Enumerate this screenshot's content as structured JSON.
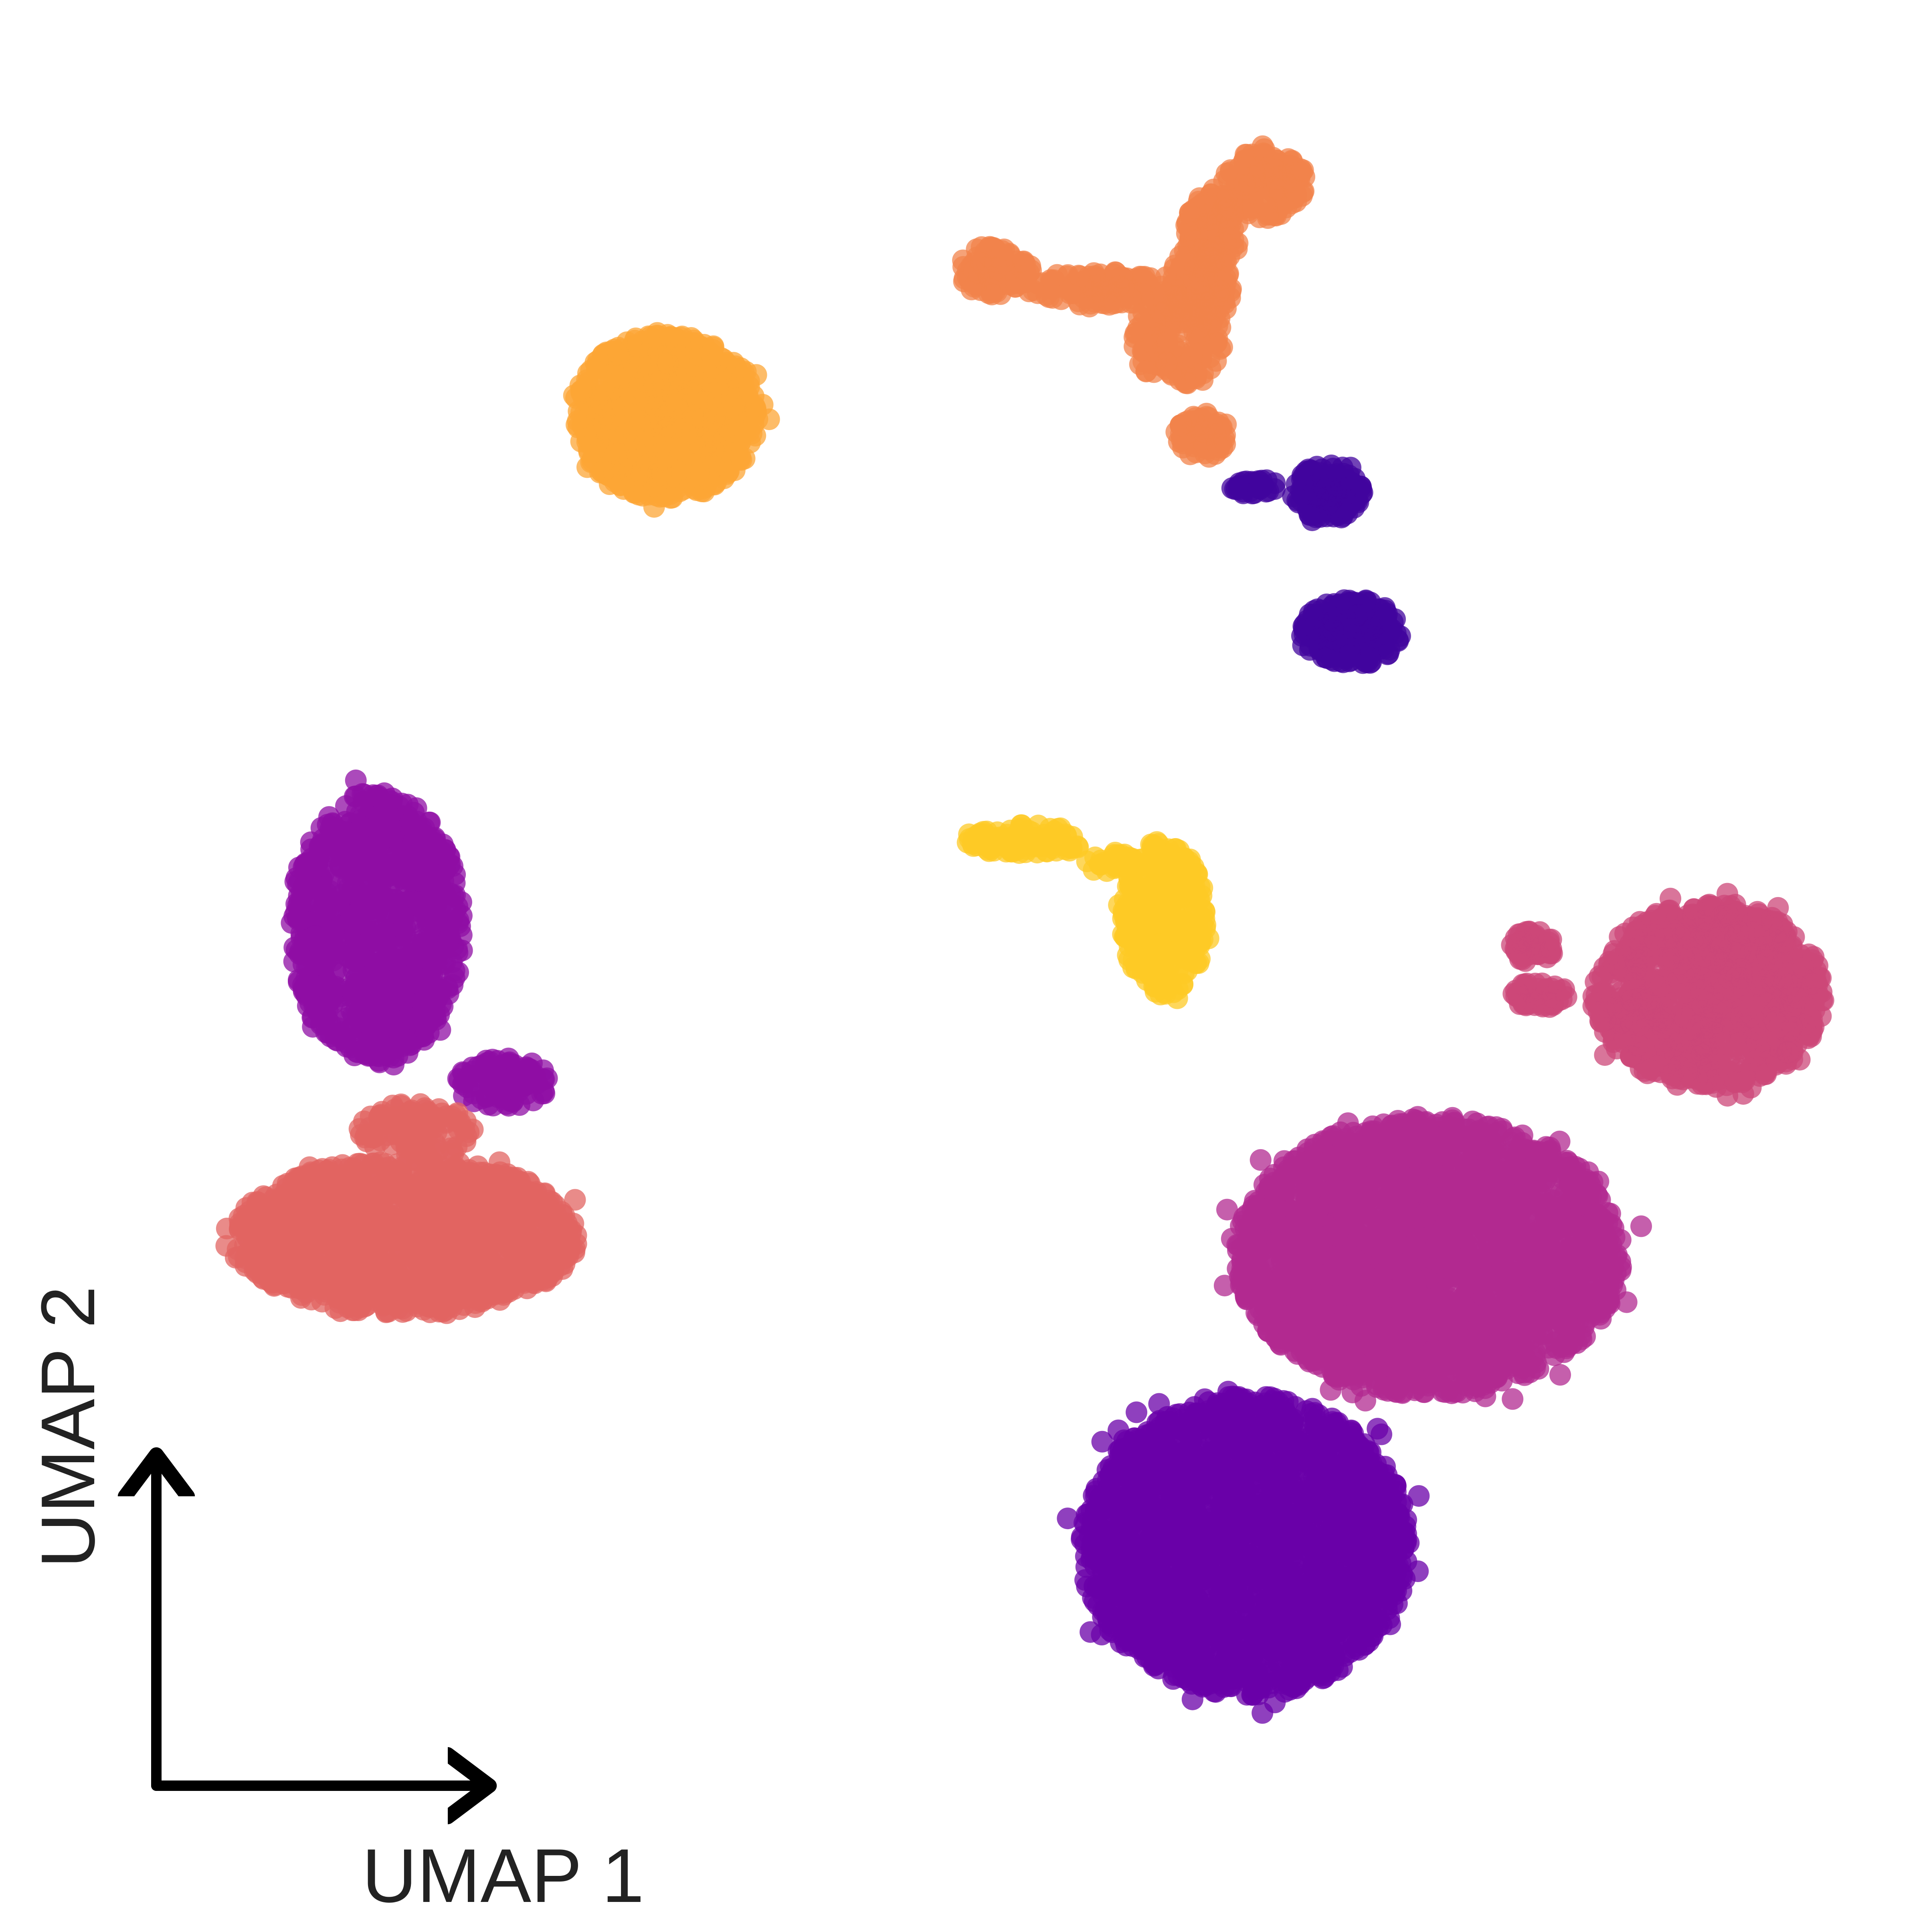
{
  "chart_data": {
    "type": "scatter",
    "title": "",
    "xlabel": "UMAP 1",
    "ylabel": "UMAP 2",
    "xlim": [
      0,
      100
    ],
    "ylim": [
      0,
      100
    ],
    "grid": false,
    "legend": "none",
    "axis_style": "corner-arrows",
    "marker": {
      "shape": "circle",
      "opacity": 0.75
    },
    "series": [
      {
        "color": "#fca636",
        "clusters": [
          {
            "cx": 34.5,
            "cy": 78.5,
            "rx": 4.8,
            "ry": 4.3,
            "n": 950
          }
        ]
      },
      {
        "color": "#f1834b",
        "clusters": [
          {
            "cx": 65.5,
            "cy": 90.5,
            "rx": 2.2,
            "ry": 1.8,
            "n": 140
          },
          {
            "cx": 62.8,
            "cy": 88.0,
            "rx": 1.4,
            "ry": 2.0,
            "n": 140
          },
          {
            "cx": 62.2,
            "cy": 85.2,
            "rx": 1.6,
            "ry": 2.2,
            "n": 150
          },
          {
            "cx": 61.0,
            "cy": 82.5,
            "rx": 2.4,
            "ry": 2.4,
            "n": 190
          },
          {
            "cx": 57.3,
            "cy": 85.0,
            "rx": 3.8,
            "ry": 0.9,
            "n": 130
          },
          {
            "cx": 51.5,
            "cy": 86.0,
            "rx": 1.9,
            "ry": 1.3,
            "n": 100
          },
          {
            "cx": 62.3,
            "cy": 77.5,
            "rx": 1.4,
            "ry": 1.2,
            "n": 70
          }
        ]
      },
      {
        "color": "#41049d",
        "clusters": [
          {
            "cx": 68.8,
            "cy": 74.5,
            "rx": 1.8,
            "ry": 1.5,
            "n": 150
          },
          {
            "cx": 70.0,
            "cy": 67.3,
            "rx": 2.6,
            "ry": 1.7,
            "n": 220
          },
          {
            "cx": 65.0,
            "cy": 74.8,
            "rx": 1.2,
            "ry": 0.4,
            "n": 30
          }
        ]
      },
      {
        "color": "#fdca26",
        "clusters": [
          {
            "cx": 60.3,
            "cy": 52.5,
            "rx": 2.2,
            "ry": 4.0,
            "n": 330
          },
          {
            "cx": 53.0,
            "cy": 56.5,
            "rx": 3.2,
            "ry": 0.8,
            "n": 110
          },
          {
            "cx": 57.5,
            "cy": 55.4,
            "rx": 1.3,
            "ry": 0.5,
            "n": 30
          }
        ]
      },
      {
        "color": "#8f0da4",
        "clusters": [
          {
            "cx": 19.5,
            "cy": 52.0,
            "rx": 4.5,
            "ry": 7.0,
            "n": 1000
          },
          {
            "cx": 26.0,
            "cy": 44.0,
            "rx": 2.4,
            "ry": 1.3,
            "n": 110
          }
        ]
      },
      {
        "color": "#e16462",
        "clusters": [
          {
            "cx": 21.0,
            "cy": 36.0,
            "rx": 9.0,
            "ry": 4.0,
            "n": 1400
          },
          {
            "cx": 21.5,
            "cy": 41.5,
            "rx": 3.0,
            "ry": 1.4,
            "n": 120
          }
        ]
      },
      {
        "color": "#cc4778",
        "clusters": [
          {
            "cx": 88.5,
            "cy": 48.5,
            "rx": 6.0,
            "ry": 4.8,
            "n": 1100
          },
          {
            "cx": 79.3,
            "cy": 51.0,
            "rx": 1.2,
            "ry": 0.8,
            "n": 55
          },
          {
            "cx": 79.8,
            "cy": 48.5,
            "rx": 1.5,
            "ry": 0.7,
            "n": 55
          }
        ]
      },
      {
        "color": "#b12a90",
        "clusters": [
          {
            "cx": 74.0,
            "cy": 35.0,
            "rx": 10.0,
            "ry": 7.2,
            "n": 2600
          }
        ]
      },
      {
        "color": "#6a00a8",
        "clusters": [
          {
            "cx": 64.5,
            "cy": 20.0,
            "rx": 8.5,
            "ry": 7.8,
            "n": 2300
          }
        ]
      }
    ]
  }
}
